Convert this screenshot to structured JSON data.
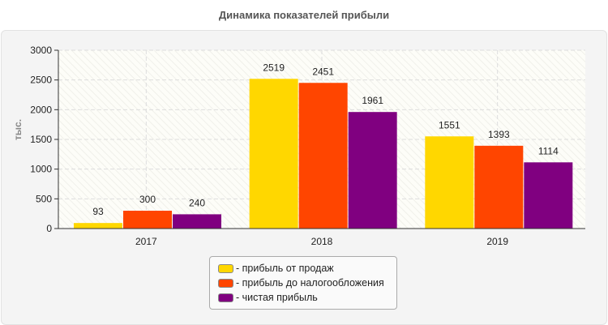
{
  "chart_data": {
    "type": "bar",
    "title": "Динамика показателей прибыли",
    "ylabel": "тыс.",
    "xlabel": "",
    "categories": [
      "2017",
      "2018",
      "2019"
    ],
    "ylim": [
      0,
      3000
    ],
    "yticks": [
      0,
      500,
      1000,
      1500,
      2000,
      2500,
      3000
    ],
    "grid": true,
    "legend_position": "bottom",
    "series": [
      {
        "name": "- прибыль от продаж",
        "color": "#ffd700",
        "values": [
          93,
          2519,
          1551
        ]
      },
      {
        "name": "- прибыль до налогообложения",
        "color": "#ff4500",
        "values": [
          300,
          2451,
          1393
        ]
      },
      {
        "name": "- чистая прибыль",
        "color": "#800080",
        "values": [
          240,
          1961,
          1114
        ]
      }
    ]
  }
}
